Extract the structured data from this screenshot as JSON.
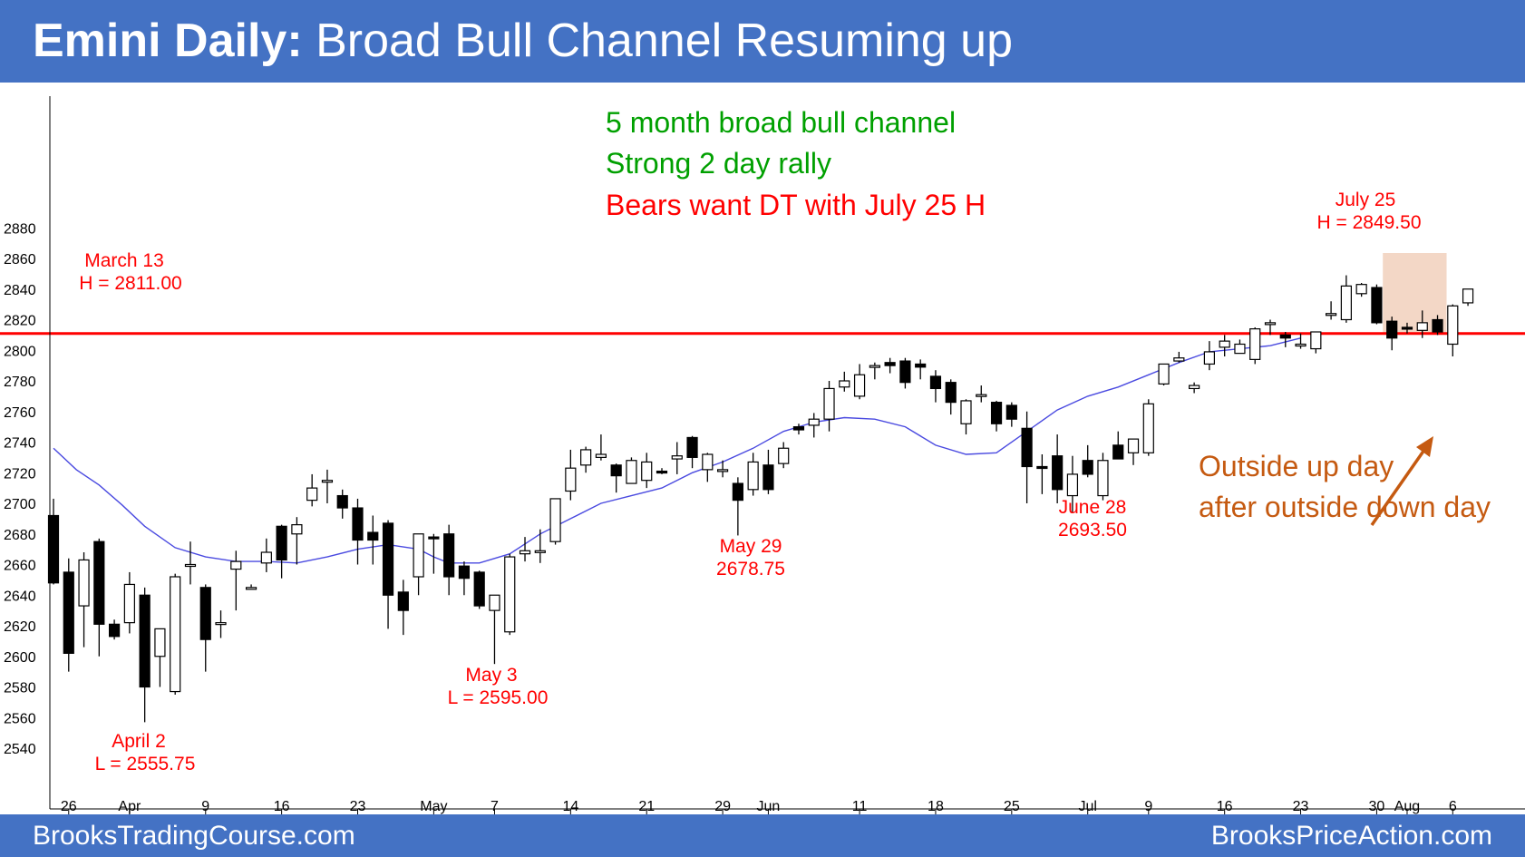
{
  "header": {
    "title_bold": "Emini Daily:",
    "title_rest": "Broad Bull Channel Resuming up"
  },
  "footer": {
    "left": "BrooksTradingCourse.com",
    "right": "BrooksPriceAction.com"
  },
  "colors": {
    "header_bg": "#4472c4",
    "note_green": "#00a000",
    "note_red": "#ff0000",
    "note_orange": "#c55a11",
    "ma_line": "#4a4ae0",
    "candle": "#000000",
    "highlight": "#f2d3c0"
  },
  "notes": {
    "line1": "5 month broad bull channel",
    "line2": "Strong 2 day rally",
    "line3": "Bears want DT with July 25 H",
    "outside1": "Outside up day",
    "outside2": "after outside down day"
  },
  "annotations": {
    "march13_a": "March 13",
    "march13_b": "H = 2811.00",
    "july25_a": "July 25",
    "july25_b": "H = 2849.50",
    "april2_a": "April 2",
    "april2_b": "L = 2555.75",
    "may3_a": "May 3",
    "may3_b": "L = 2595.00",
    "may29_a": "May 29",
    "may29_b": "2678.75",
    "june28_a": "June 28",
    "june28_b": "2693.50"
  },
  "chart_data": {
    "type": "candlestick",
    "title": "Emini Daily: Broad Bull Channel Resuming up",
    "ylim": [
      2530,
      2890
    ],
    "yticks": [
      2540,
      2560,
      2580,
      2600,
      2620,
      2640,
      2660,
      2680,
      2700,
      2720,
      2740,
      2760,
      2780,
      2800,
      2820,
      2840,
      2860,
      2880
    ],
    "xtick_labels": [
      {
        "label": "26",
        "bar": 1
      },
      {
        "label": "Apr",
        "bar": 5
      },
      {
        "label": "9",
        "bar": 10
      },
      {
        "label": "16",
        "bar": 15
      },
      {
        "label": "23",
        "bar": 20
      },
      {
        "label": "May",
        "bar": 25
      },
      {
        "label": "7",
        "bar": 29
      },
      {
        "label": "14",
        "bar": 34
      },
      {
        "label": "21",
        "bar": 39
      },
      {
        "label": "29",
        "bar": 44
      },
      {
        "label": "Jun",
        "bar": 47
      },
      {
        "label": "11",
        "bar": 53
      },
      {
        "label": "18",
        "bar": 58
      },
      {
        "label": "25",
        "bar": 63
      },
      {
        "label": "Jul",
        "bar": 68
      },
      {
        "label": "9",
        "bar": 72
      },
      {
        "label": "16",
        "bar": 77
      },
      {
        "label": "23",
        "bar": 82
      },
      {
        "label": "30",
        "bar": 87
      },
      {
        "label": "Aug",
        "bar": 89
      },
      {
        "label": "6",
        "bar": 92
      }
    ],
    "hline": {
      "value": 2811.0,
      "label": "March 13 H = 2811.00"
    },
    "highlight_bars": [
      88,
      91
    ],
    "ohlc": [
      [
        2692,
        2703,
        2647,
        2648
      ],
      [
        2655,
        2664,
        2590,
        2602
      ],
      [
        2633,
        2668,
        2606,
        2663
      ],
      [
        2675,
        2677,
        2600,
        2621
      ],
      [
        2621,
        2624,
        2611,
        2613
      ],
      [
        2622,
        2655,
        2615,
        2647
      ],
      [
        2640,
        2645,
        2557,
        2580
      ],
      [
        2600,
        2618,
        2580,
        2618
      ],
      [
        2577,
        2654,
        2575,
        2652
      ],
      [
        2660,
        2675,
        2647,
        2660
      ],
      [
        2645,
        2647,
        2590,
        2611
      ],
      [
        2622,
        2630,
        2612,
        2622
      ],
      [
        2657,
        2669,
        2630,
        2662
      ],
      [
        2645,
        2647,
        2644,
        2645
      ],
      [
        2661,
        2677,
        2655,
        2668
      ],
      [
        2685,
        2686,
        2651,
        2663
      ],
      [
        2680,
        2691,
        2660,
        2686
      ],
      [
        2702,
        2719,
        2698,
        2710
      ],
      [
        2715,
        2722,
        2700,
        2715
      ],
      [
        2705,
        2709,
        2690,
        2697
      ],
      [
        2697,
        2703,
        2660,
        2676
      ],
      [
        2681,
        2692,
        2660,
        2676
      ],
      [
        2687,
        2689,
        2618,
        2640
      ],
      [
        2642,
        2650,
        2614,
        2630
      ],
      [
        2652,
        2680,
        2640,
        2680
      ],
      [
        2678,
        2680,
        2654,
        2677
      ],
      [
        2680,
        2686,
        2640,
        2652
      ],
      [
        2659,
        2662,
        2640,
        2651
      ],
      [
        2655,
        2656,
        2631,
        2633
      ],
      [
        2630,
        2640,
        2595,
        2640
      ],
      [
        2616,
        2667,
        2614,
        2665
      ],
      [
        2667,
        2678,
        2662,
        2669
      ],
      [
        2668,
        2683,
        2661,
        2669
      ],
      [
        2675,
        2701,
        2673,
        2703
      ],
      [
        2708,
        2735,
        2702,
        2723
      ],
      [
        2725,
        2737,
        2720,
        2735
      ],
      [
        2730,
        2745,
        2728,
        2732
      ],
      [
        2725,
        2726,
        2707,
        2718
      ],
      [
        2713,
        2730,
        2716,
        2728
      ],
      [
        2715,
        2733,
        2710,
        2727
      ],
      [
        2721,
        2723,
        2719,
        2720
      ],
      [
        2729,
        2740,
        2719,
        2731
      ],
      [
        2743,
        2744,
        2723,
        2730
      ],
      [
        2722,
        2733,
        2714,
        2732
      ],
      [
        2722,
        2728,
        2717,
        2722
      ],
      [
        2713,
        2717,
        2679,
        2702
      ],
      [
        2709,
        2733,
        2705,
        2727
      ],
      [
        2725,
        2735,
        2706,
        2709
      ],
      [
        2726,
        2740,
        2723,
        2736
      ],
      [
        2750,
        2752,
        2745,
        2748
      ],
      [
        2751,
        2759,
        2743,
        2755
      ],
      [
        2755,
        2780,
        2747,
        2775
      ],
      [
        2776,
        2786,
        2773,
        2780
      ],
      [
        2770,
        2791,
        2768,
        2784
      ],
      [
        2789,
        2792,
        2781,
        2790
      ],
      [
        2792,
        2795,
        2785,
        2790
      ],
      [
        2793,
        2795,
        2775,
        2779
      ],
      [
        2791,
        2794,
        2781,
        2789
      ],
      [
        2783,
        2787,
        2766,
        2775
      ],
      [
        2779,
        2781,
        2758,
        2766
      ],
      [
        2752,
        2768,
        2745,
        2767
      ],
      [
        2771,
        2777,
        2766,
        2771
      ],
      [
        2766,
        2767,
        2747,
        2752
      ],
      [
        2764,
        2766,
        2750,
        2755
      ],
      [
        2749,
        2760,
        2700,
        2724
      ],
      [
        2724,
        2732,
        2706,
        2723
      ],
      [
        2731,
        2745,
        2700,
        2709
      ],
      [
        2705,
        2731,
        2694,
        2719
      ],
      [
        2728,
        2738,
        2717,
        2719
      ],
      [
        2705,
        2733,
        2702,
        2728
      ],
      [
        2738,
        2747,
        2729,
        2729
      ],
      [
        2733,
        2742,
        2725,
        2742
      ],
      [
        2733,
        2768,
        2731,
        2765
      ],
      [
        2778,
        2791,
        2777,
        2791
      ],
      [
        2793,
        2799,
        2792,
        2795
      ],
      [
        2775,
        2779,
        2772,
        2777
      ],
      [
        2791,
        2806,
        2787,
        2799
      ],
      [
        2802,
        2810,
        2796,
        2806
      ],
      [
        2798,
        2807,
        2798,
        2804
      ],
      [
        2794,
        2815,
        2791,
        2814
      ],
      [
        2818,
        2820,
        2810,
        2818
      ],
      [
        2810,
        2812,
        2802,
        2808
      ],
      [
        2803,
        2811,
        2801,
        2804
      ],
      [
        2801,
        2811,
        2798,
        2812
      ],
      [
        2823,
        2832,
        2820,
        2824
      ],
      [
        2820,
        2849,
        2818,
        2842
      ],
      [
        2837,
        2844,
        2835,
        2843
      ],
      [
        2841,
        2843,
        2817,
        2818
      ],
      [
        2819,
        2822,
        2800,
        2808
      ],
      [
        2815,
        2818,
        2811,
        2814
      ],
      [
        2813,
        2826,
        2808,
        2818
      ],
      [
        2820,
        2823,
        2810,
        2812
      ],
      [
        2804,
        2830,
        2796,
        2829
      ],
      [
        2831,
        2840,
        2829,
        2840
      ]
    ],
    "ma20": [
      [
        0,
        2736
      ],
      [
        3,
        2722
      ],
      [
        6,
        2712
      ],
      [
        9,
        2699
      ],
      [
        12,
        2685
      ],
      [
        16,
        2671
      ],
      [
        20,
        2665
      ],
      [
        24,
        2662
      ],
      [
        28,
        2662
      ],
      [
        32,
        2661
      ],
      [
        36,
        2665
      ],
      [
        40,
        2670
      ],
      [
        44,
        2673
      ],
      [
        48,
        2670
      ],
      [
        50,
        2665
      ],
      [
        52,
        2661
      ],
      [
        56,
        2661
      ],
      [
        60,
        2667
      ],
      [
        64,
        2680
      ],
      [
        68,
        2690
      ],
      [
        72,
        2700
      ],
      [
        76,
        2705
      ],
      [
        80,
        2710
      ],
      [
        84,
        2720
      ],
      [
        88,
        2727
      ],
      [
        92,
        2736
      ],
      [
        96,
        2747
      ],
      [
        100,
        2753
      ],
      [
        104,
        2756
      ],
      [
        108,
        2755
      ],
      [
        112,
        2750
      ],
      [
        116,
        2738
      ],
      [
        120,
        2732
      ],
      [
        124,
        2733
      ],
      [
        128,
        2747
      ],
      [
        132,
        2761
      ],
      [
        136,
        2770
      ],
      [
        140,
        2776
      ],
      [
        144,
        2784
      ],
      [
        148,
        2792
      ],
      [
        152,
        2799
      ],
      [
        156,
        2801
      ],
      [
        160,
        2803
      ],
      [
        164,
        2808
      ]
    ]
  }
}
